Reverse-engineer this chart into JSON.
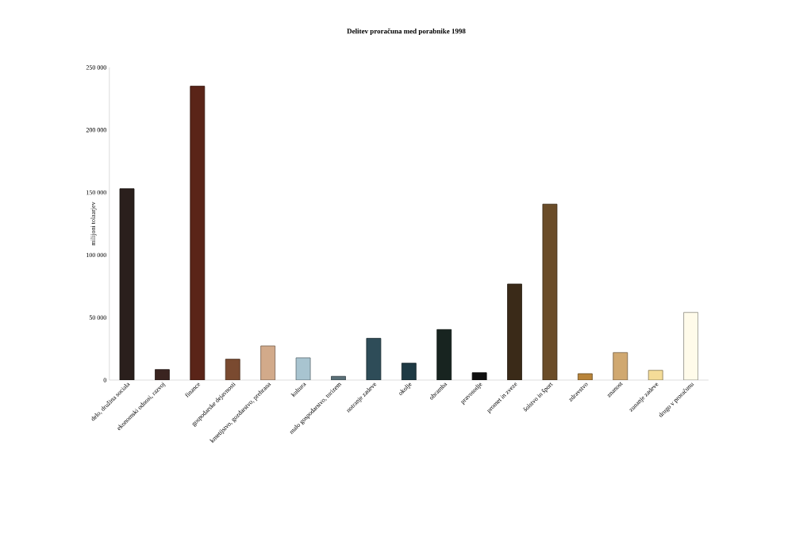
{
  "chart_data": {
    "type": "bar",
    "title": "Delitev proračuna med porabnike 1998",
    "ylabel": "milijoni tolaarjev",
    "categories": [
      "delo, družina sociala",
      "ekonomski odnosi, razvoj",
      "finance",
      "gospodarske dejavnosti",
      "kmetijstvo, gozdarstvo, prehrana",
      "kultura",
      "malo gospodarstvo, turizem",
      "notranje zadeve",
      "okolje",
      "obramba",
      "pravosodje",
      "promet in zveze",
      "šolstvo in šport",
      "zdravstvo",
      "znanost",
      "zunanje zadeve",
      "drugo v proračunu"
    ],
    "values": [
      153000,
      8400,
      235000,
      16700,
      27300,
      17800,
      3000,
      33400,
      13500,
      40400,
      5900,
      76800,
      140700,
      5100,
      22000,
      7800,
      54100
    ],
    "colors": [
      "#2a1f1c",
      "#3a2420",
      "#5a2418",
      "#7a4a30",
      "#d2aa8a",
      "#a8c4d0",
      "#5a7078",
      "#2e4c58",
      "#1e3a44",
      "#182420",
      "#101010",
      "#3a2a18",
      "#6a4c28",
      "#b8843a",
      "#d0a870",
      "#f4dc98",
      "#fffbea"
    ],
    "ylim": [
      0,
      250000
    ],
    "yticks": [
      {
        "value": 0,
        "label": "0"
      },
      {
        "value": 50000,
        "label": "50 000"
      },
      {
        "value": 100000,
        "label": "100 000"
      },
      {
        "value": 150000,
        "label": "150 000"
      },
      {
        "value": 200000,
        "label": "200 000"
      },
      {
        "value": 250000,
        "label": "250 000"
      }
    ],
    "grid": false
  }
}
